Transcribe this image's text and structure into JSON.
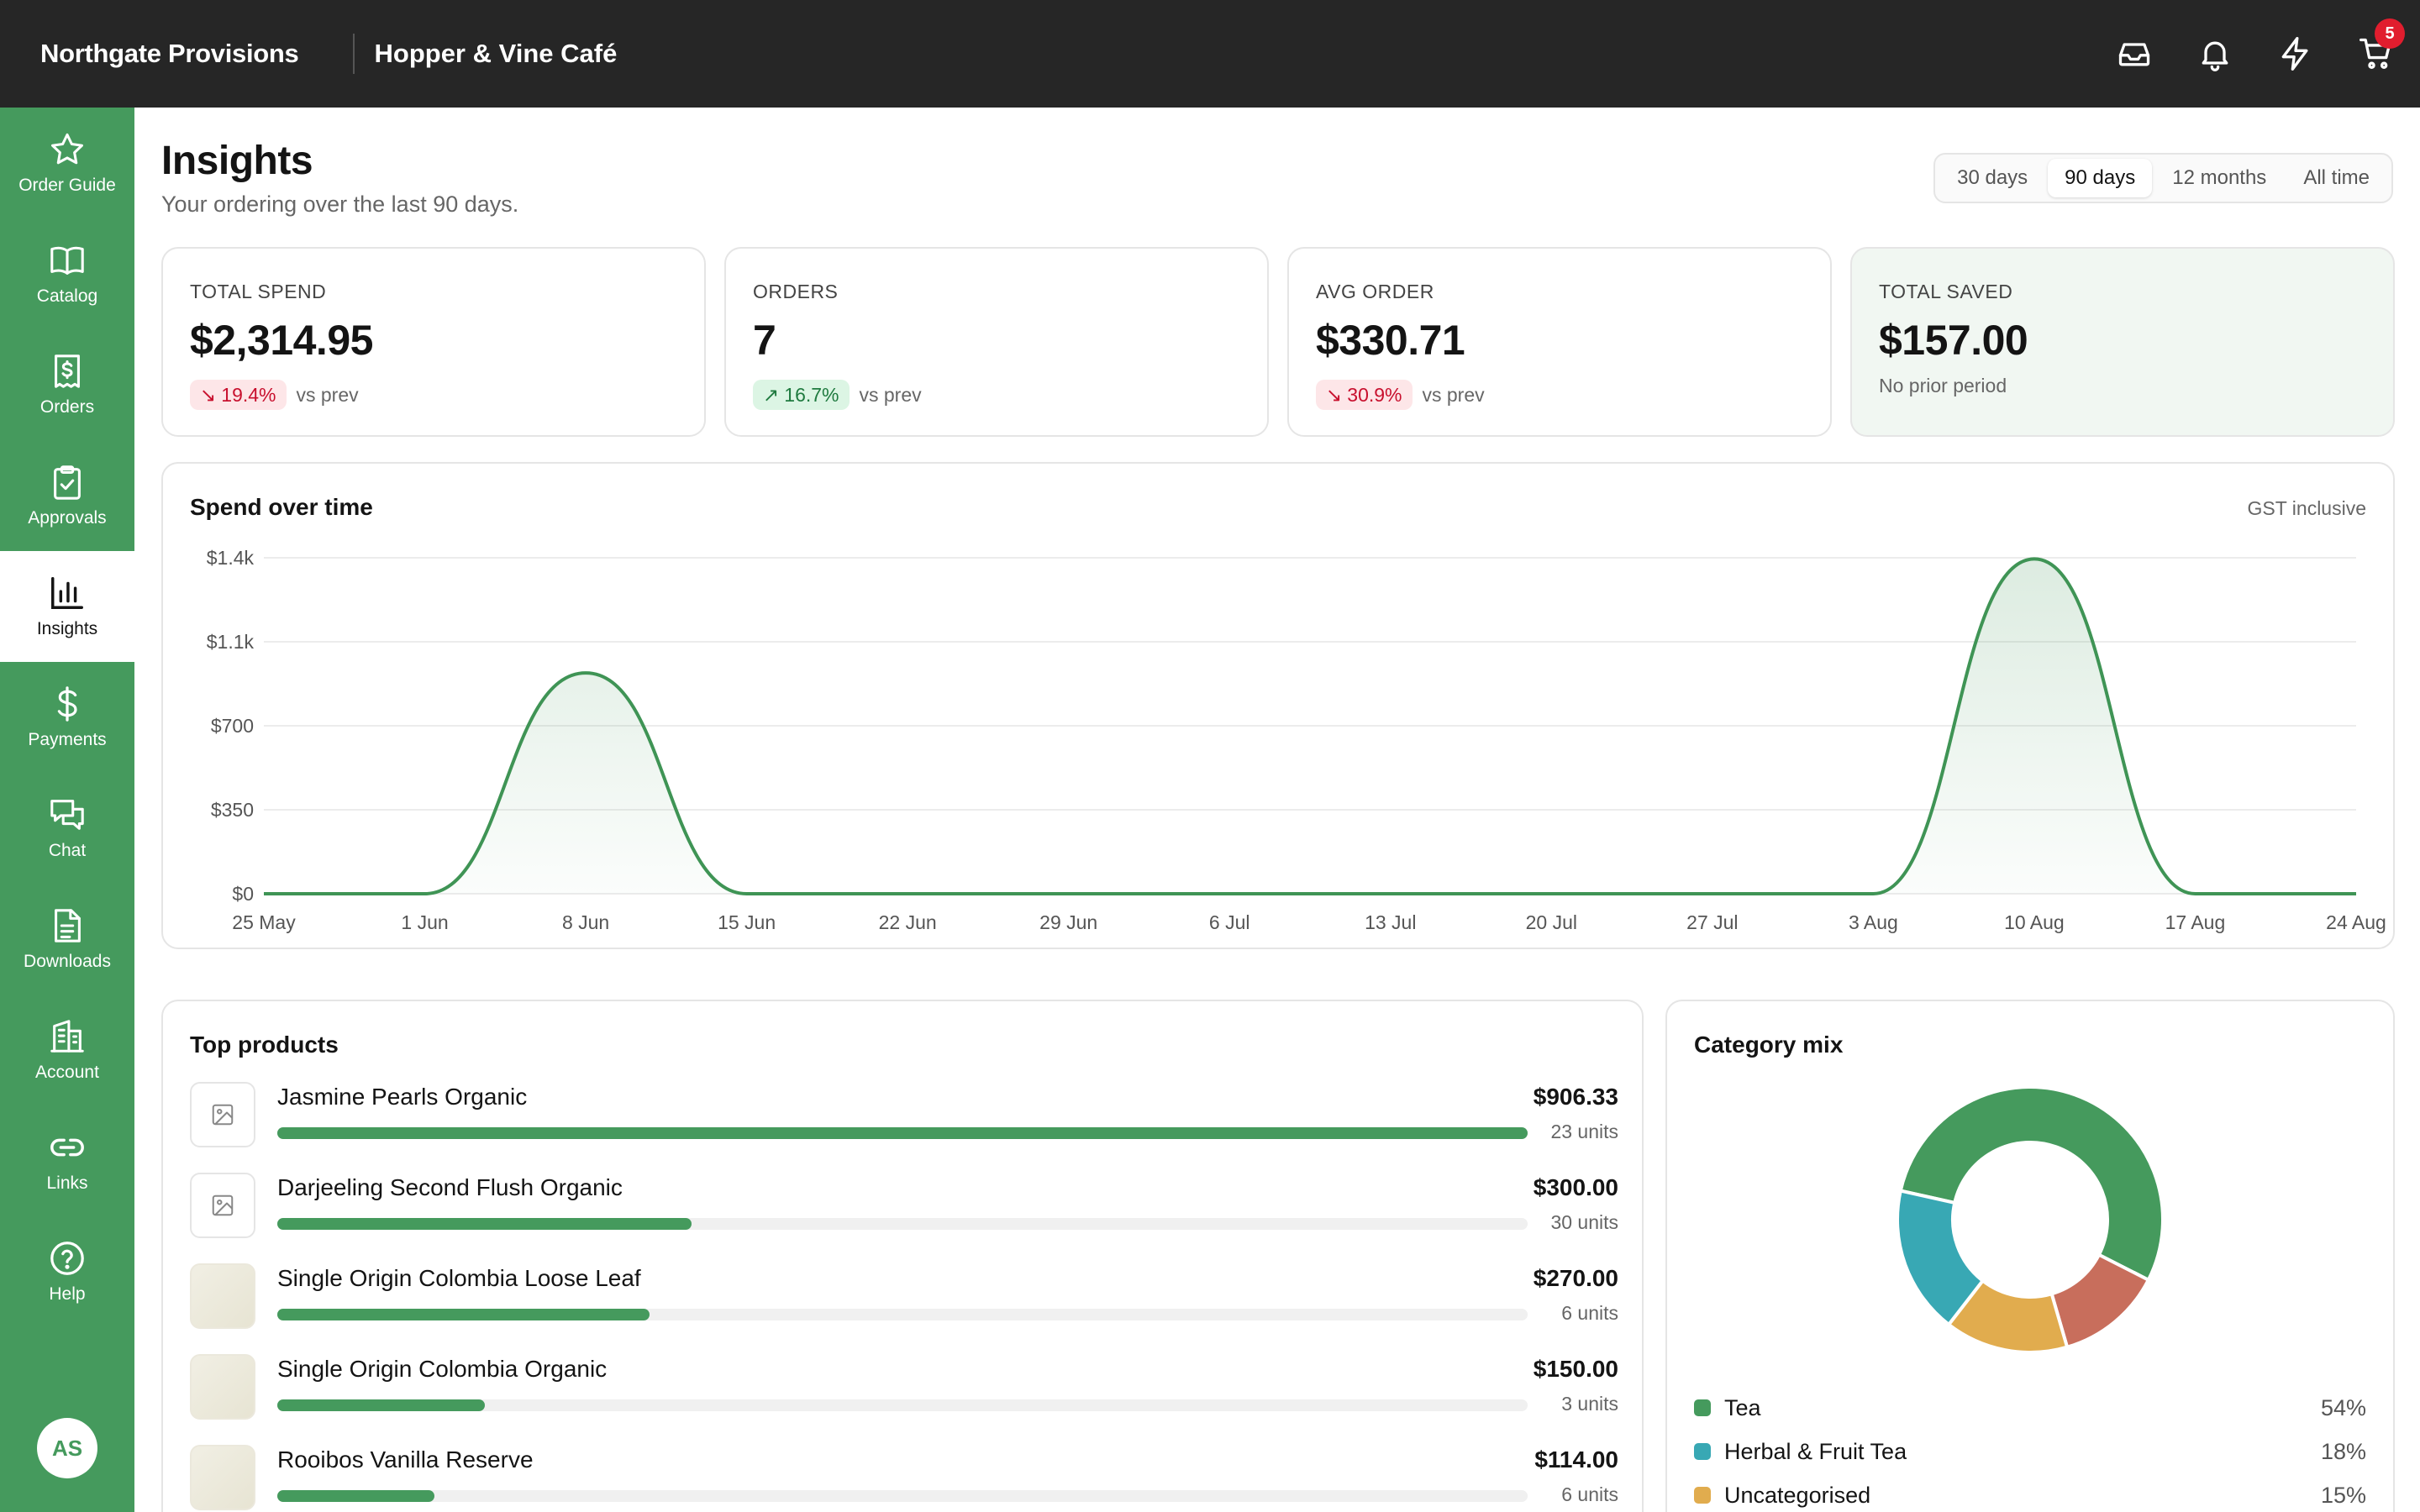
{
  "topbar": {
    "brand": "Northgate Provisions",
    "venue": "Hopper & Vine Café",
    "cart_count": "5",
    "icons": [
      "inbox-icon",
      "bell-icon",
      "lightning-icon",
      "cart-icon"
    ]
  },
  "sidebar": {
    "items": [
      {
        "label": "Order Guide",
        "icon": "star-icon"
      },
      {
        "label": "Catalog",
        "icon": "book-icon"
      },
      {
        "label": "Orders",
        "icon": "receipt-icon"
      },
      {
        "label": "Approvals",
        "icon": "clipboard-check-icon"
      },
      {
        "label": "Insights",
        "icon": "bar-chart-icon"
      },
      {
        "label": "Payments",
        "icon": "dollar-icon"
      },
      {
        "label": "Chat",
        "icon": "chat-icon"
      },
      {
        "label": "Downloads",
        "icon": "document-icon"
      },
      {
        "label": "Account",
        "icon": "building-icon"
      },
      {
        "label": "Links",
        "icon": "link-icon"
      },
      {
        "label": "Help",
        "icon": "help-icon"
      }
    ],
    "active": "Insights",
    "avatar": "AS"
  },
  "header": {
    "title": "Insights",
    "subtitle": "Your ordering over the last 90 days.",
    "ranges": [
      "30 days",
      "90 days",
      "12 months",
      "All time"
    ],
    "active_range": "90 days"
  },
  "kpis": {
    "total_spend": {
      "label": "TOTAL SPEND",
      "value": "$2,314.95",
      "change": "19.4%",
      "direction": "down",
      "suffix": "vs prev"
    },
    "orders": {
      "label": "ORDERS",
      "value": "7",
      "change": "16.7%",
      "direction": "up",
      "suffix": "vs prev"
    },
    "avg_order": {
      "label": "AVG ORDER",
      "value": "$330.71",
      "change": "30.9%",
      "direction": "down",
      "suffix": "vs prev"
    },
    "total_saved": {
      "label": "TOTAL SAVED",
      "value": "$157.00",
      "note": "No prior period"
    }
  },
  "spend_chart": {
    "title": "Spend over time",
    "note": "GST inclusive",
    "color": "#3f9455"
  },
  "chart_data": {
    "type": "area",
    "title": "Spend over time",
    "xlabel": "",
    "ylabel": "",
    "x": [
      "25 May",
      "1 Jun",
      "8 Jun",
      "15 Jun",
      "22 Jun",
      "29 Jun",
      "6 Jul",
      "13 Jul",
      "20 Jul",
      "27 Jul",
      "3 Aug",
      "10 Aug",
      "17 Aug",
      "24 Aug"
    ],
    "y": [
      0,
      0,
      920,
      0,
      0,
      0,
      0,
      0,
      0,
      0,
      0,
      1395,
      0,
      0
    ],
    "yticks": [
      "$0",
      "$350",
      "$700",
      "$1.1k",
      "$1.4k"
    ],
    "ytick_values": [
      0,
      350,
      700,
      1050,
      1400
    ],
    "ylim": [
      0,
      1400
    ],
    "grid": true
  },
  "top_products": {
    "title": "Top products",
    "items": [
      {
        "name": "Jasmine Pearls Organic",
        "price": "$906.33",
        "units": "23 units",
        "share": 1.0,
        "thumb": "placeholder"
      },
      {
        "name": "Darjeeling Second Flush Organic",
        "price": "$300.00",
        "units": "30 units",
        "share": 0.331,
        "thumb": "placeholder"
      },
      {
        "name": "Single Origin Colombia Loose Leaf",
        "price": "$270.00",
        "units": "6 units",
        "share": 0.298,
        "thumb": "photo"
      },
      {
        "name": "Single Origin Colombia Organic",
        "price": "$150.00",
        "units": "3 units",
        "share": 0.166,
        "thumb": "photo"
      },
      {
        "name": "Rooibos Vanilla Reserve",
        "price": "$114.00",
        "units": "6 units",
        "share": 0.126,
        "thumb": "photo"
      }
    ]
  },
  "category_mix": {
    "title": "Category mix",
    "items": [
      {
        "name": "Tea",
        "pct": "54%",
        "value": 54,
        "color": "#459a5d"
      },
      {
        "name": "Herbal & Fruit Tea",
        "pct": "18%",
        "value": 18,
        "color": "#38a8b4"
      },
      {
        "name": "Uncategorised",
        "pct": "15%",
        "value": 15,
        "color": "#e1ac4e"
      }
    ],
    "unlabeled_slices": [
      {
        "value": 13,
        "color": "#c86e5c"
      }
    ]
  }
}
